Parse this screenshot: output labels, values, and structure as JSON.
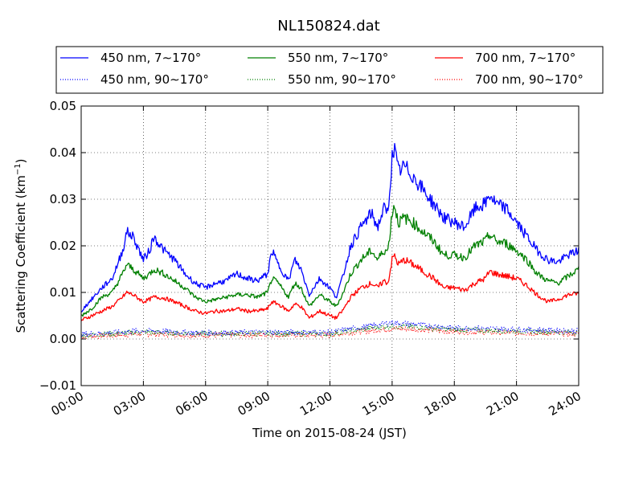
{
  "chart_data": {
    "type": "line",
    "title": "NL150824.dat",
    "xlabel": "Time on 2015-08-24 (JST)",
    "ylabel_main": "Scattering Coefficient (km",
    "ylabel_sup": "−1",
    "ylabel_end": ")",
    "xlim": [
      0,
      24
    ],
    "ylim": [
      -0.01,
      0.05
    ],
    "x_ticks": [
      0,
      3,
      6,
      9,
      12,
      15,
      18,
      21,
      24
    ],
    "x_tick_labels": [
      "00:00",
      "03:00",
      "06:00",
      "09:00",
      "12:00",
      "15:00",
      "18:00",
      "21:00",
      "24:00"
    ],
    "y_ticks": [
      -0.01,
      0.0,
      0.01,
      0.02,
      0.03,
      0.04,
      0.05
    ],
    "y_tick_labels": [
      "−0.01",
      "0.00",
      "0.01",
      "0.02",
      "0.03",
      "0.04",
      "0.05"
    ],
    "grid": true,
    "legend_position": "top, above plot, 3 columns",
    "series": [
      {
        "name": "450 nm, 7∼170°",
        "color": "#0000ff",
        "style": "solid",
        "points": [
          [
            0,
            0.006
          ],
          [
            0.5,
            0.0085
          ],
          [
            1,
            0.011
          ],
          [
            1.5,
            0.013
          ],
          [
            2,
            0.019
          ],
          [
            2.2,
            0.023
          ],
          [
            2.5,
            0.022
          ],
          [
            3,
            0.017
          ],
          [
            3.3,
            0.019
          ],
          [
            3.5,
            0.022
          ],
          [
            4,
            0.019
          ],
          [
            4.5,
            0.017
          ],
          [
            5,
            0.014
          ],
          [
            5.5,
            0.012
          ],
          [
            6,
            0.011
          ],
          [
            6.5,
            0.012
          ],
          [
            7,
            0.0125
          ],
          [
            7.5,
            0.014
          ],
          [
            8,
            0.013
          ],
          [
            8.5,
            0.0125
          ],
          [
            9,
            0.014
          ],
          [
            9.2,
            0.019
          ],
          [
            9.5,
            0.016
          ],
          [
            10,
            0.0125
          ],
          [
            10.3,
            0.017
          ],
          [
            10.6,
            0.015
          ],
          [
            11,
            0.0095
          ],
          [
            11.5,
            0.013
          ],
          [
            12,
            0.011
          ],
          [
            12.3,
            0.009
          ],
          [
            12.6,
            0.013
          ],
          [
            13,
            0.02
          ],
          [
            13.5,
            0.024
          ],
          [
            14,
            0.027
          ],
          [
            14.3,
            0.024
          ],
          [
            14.6,
            0.028
          ],
          [
            14.8,
            0.027
          ],
          [
            15,
            0.039
          ],
          [
            15.1,
            0.041
          ],
          [
            15.3,
            0.036
          ],
          [
            15.6,
            0.037
          ],
          [
            16,
            0.035
          ],
          [
            16.5,
            0.032
          ],
          [
            17,
            0.029
          ],
          [
            17.5,
            0.026
          ],
          [
            18,
            0.025
          ],
          [
            18.5,
            0.024
          ],
          [
            19,
            0.028
          ],
          [
            19.5,
            0.029
          ],
          [
            19.7,
            0.031
          ],
          [
            20,
            0.029
          ],
          [
            20.5,
            0.028
          ],
          [
            21,
            0.025
          ],
          [
            21.5,
            0.022
          ],
          [
            22,
            0.019
          ],
          [
            22.5,
            0.017
          ],
          [
            23,
            0.0165
          ],
          [
            23.5,
            0.018
          ],
          [
            24,
            0.019
          ]
        ]
      },
      {
        "name": "550 nm, 7∼170°",
        "color": "#008000",
        "style": "solid",
        "points": [
          [
            0,
            0.005
          ],
          [
            0.5,
            0.0065
          ],
          [
            1,
            0.009
          ],
          [
            1.5,
            0.01
          ],
          [
            2,
            0.014
          ],
          [
            2.2,
            0.016
          ],
          [
            2.5,
            0.015
          ],
          [
            3,
            0.013
          ],
          [
            3.3,
            0.014
          ],
          [
            3.5,
            0.015
          ],
          [
            4,
            0.014
          ],
          [
            4.5,
            0.0125
          ],
          [
            5,
            0.011
          ],
          [
            5.5,
            0.009
          ],
          [
            6,
            0.008
          ],
          [
            6.5,
            0.0085
          ],
          [
            7,
            0.009
          ],
          [
            7.5,
            0.0095
          ],
          [
            8,
            0.0095
          ],
          [
            8.5,
            0.009
          ],
          [
            9,
            0.01
          ],
          [
            9.2,
            0.013
          ],
          [
            9.5,
            0.012
          ],
          [
            10,
            0.009
          ],
          [
            10.3,
            0.012
          ],
          [
            10.6,
            0.011
          ],
          [
            11,
            0.007
          ],
          [
            11.5,
            0.0095
          ],
          [
            12,
            0.008
          ],
          [
            12.3,
            0.007
          ],
          [
            12.6,
            0.0095
          ],
          [
            13,
            0.014
          ],
          [
            13.5,
            0.017
          ],
          [
            14,
            0.019
          ],
          [
            14.3,
            0.017
          ],
          [
            14.6,
            0.019
          ],
          [
            14.8,
            0.019
          ],
          [
            15,
            0.027
          ],
          [
            15.1,
            0.029
          ],
          [
            15.3,
            0.025
          ],
          [
            15.6,
            0.026
          ],
          [
            16,
            0.025
          ],
          [
            16.5,
            0.023
          ],
          [
            17,
            0.021
          ],
          [
            17.5,
            0.018
          ],
          [
            18,
            0.018
          ],
          [
            18.5,
            0.0175
          ],
          [
            19,
            0.02
          ],
          [
            19.5,
            0.021
          ],
          [
            19.7,
            0.0225
          ],
          [
            20,
            0.021
          ],
          [
            20.5,
            0.0205
          ],
          [
            21,
            0.019
          ],
          [
            21.5,
            0.017
          ],
          [
            22,
            0.014
          ],
          [
            22.5,
            0.0125
          ],
          [
            23,
            0.012
          ],
          [
            23.5,
            0.0135
          ],
          [
            24,
            0.015
          ]
        ]
      },
      {
        "name": "700 nm, 7∼170°",
        "color": "#ff0000",
        "style": "solid",
        "points": [
          [
            0,
            0.004
          ],
          [
            0.5,
            0.005
          ],
          [
            1,
            0.006
          ],
          [
            1.5,
            0.007
          ],
          [
            2,
            0.009
          ],
          [
            2.2,
            0.01
          ],
          [
            2.5,
            0.0095
          ],
          [
            3,
            0.008
          ],
          [
            3.3,
            0.0085
          ],
          [
            3.5,
            0.009
          ],
          [
            4,
            0.0088
          ],
          [
            4.5,
            0.008
          ],
          [
            5,
            0.007
          ],
          [
            5.5,
            0.006
          ],
          [
            6,
            0.0055
          ],
          [
            6.5,
            0.006
          ],
          [
            7,
            0.006
          ],
          [
            7.5,
            0.0065
          ],
          [
            8,
            0.006
          ],
          [
            8.5,
            0.006
          ],
          [
            9,
            0.0065
          ],
          [
            9.2,
            0.008
          ],
          [
            9.5,
            0.0075
          ],
          [
            10,
            0.006
          ],
          [
            10.3,
            0.0075
          ],
          [
            10.6,
            0.007
          ],
          [
            11,
            0.0045
          ],
          [
            11.5,
            0.006
          ],
          [
            12,
            0.005
          ],
          [
            12.3,
            0.0045
          ],
          [
            12.6,
            0.006
          ],
          [
            13,
            0.009
          ],
          [
            13.5,
            0.011
          ],
          [
            14,
            0.012
          ],
          [
            14.3,
            0.011
          ],
          [
            14.6,
            0.0125
          ],
          [
            14.8,
            0.012
          ],
          [
            15,
            0.017
          ],
          [
            15.1,
            0.018
          ],
          [
            15.3,
            0.016
          ],
          [
            15.6,
            0.017
          ],
          [
            16,
            0.016
          ],
          [
            16.5,
            0.0145
          ],
          [
            17,
            0.013
          ],
          [
            17.5,
            0.011
          ],
          [
            18,
            0.011
          ],
          [
            18.5,
            0.0105
          ],
          [
            19,
            0.012
          ],
          [
            19.5,
            0.013
          ],
          [
            19.7,
            0.0145
          ],
          [
            20,
            0.014
          ],
          [
            20.5,
            0.0135
          ],
          [
            21,
            0.013
          ],
          [
            21.5,
            0.0115
          ],
          [
            22,
            0.0095
          ],
          [
            22.5,
            0.008
          ],
          [
            23,
            0.0085
          ],
          [
            23.5,
            0.0095
          ],
          [
            24,
            0.0098
          ]
        ]
      },
      {
        "name": "450 nm, 90∼170°",
        "color": "#0000ff",
        "style": "dotted",
        "points": [
          [
            0,
            0.001
          ],
          [
            3,
            0.0018
          ],
          [
            6,
            0.0013
          ],
          [
            9,
            0.0015
          ],
          [
            12,
            0.0014
          ],
          [
            13,
            0.0022
          ],
          [
            15,
            0.0035
          ],
          [
            16,
            0.0032
          ],
          [
            18,
            0.0024
          ],
          [
            21,
            0.0021
          ],
          [
            24,
            0.0017
          ]
        ]
      },
      {
        "name": "550 nm, 90∼170°",
        "color": "#008000",
        "style": "dotted",
        "points": [
          [
            0,
            0.0008
          ],
          [
            3,
            0.0015
          ],
          [
            6,
            0.0011
          ],
          [
            9,
            0.0012
          ],
          [
            12,
            0.0011
          ],
          [
            13,
            0.0018
          ],
          [
            15,
            0.0028
          ],
          [
            16,
            0.0026
          ],
          [
            18,
            0.002
          ],
          [
            21,
            0.0017
          ],
          [
            24,
            0.0014
          ]
        ]
      },
      {
        "name": "700 nm, 90∼170°",
        "color": "#ff0000",
        "style": "dotted",
        "points": [
          [
            0,
            0.0005
          ],
          [
            3,
            0.0011
          ],
          [
            6,
            0.0008
          ],
          [
            9,
            0.0009
          ],
          [
            12,
            0.0008
          ],
          [
            13,
            0.0014
          ],
          [
            15,
            0.0022
          ],
          [
            16,
            0.0021
          ],
          [
            18,
            0.0016
          ],
          [
            21,
            0.0013
          ],
          [
            24,
            0.0011
          ]
        ]
      }
    ]
  }
}
